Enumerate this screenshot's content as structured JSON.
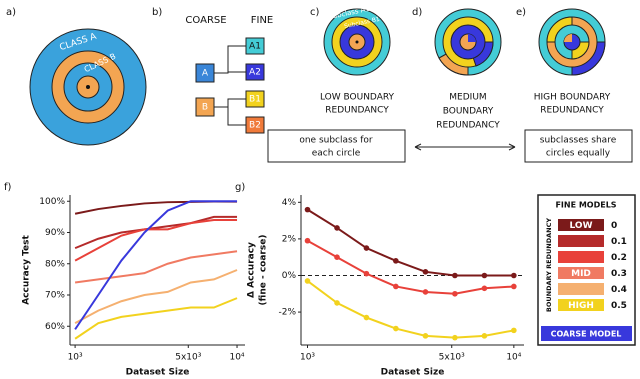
{
  "diagram": {
    "a": {
      "letter": "a)",
      "labels": [
        "CLASS A",
        "CLASS B"
      ]
    },
    "b": {
      "letter": "b)",
      "coarse": "COARSE",
      "fine": "FINE",
      "nodes": [
        "A",
        "B"
      ],
      "subnodes": [
        "A1",
        "A2",
        "B1",
        "B2"
      ]
    },
    "c": {
      "letter": "c)",
      "labels": [
        "Subclass A1",
        "Subclass B1"
      ],
      "caption": [
        "LOW BOUNDARY",
        "REDUNDANCY"
      ]
    },
    "d": {
      "letter": "d)",
      "caption": [
        "MEDIUM",
        "BOUNDARY",
        "REDUNDANCY"
      ]
    },
    "e": {
      "letter": "e)",
      "caption": [
        "HIGH BOUNDARY",
        "REDUNDANCY"
      ]
    },
    "notes": [
      [
        "one subclass for",
        "each circle"
      ],
      [
        "subclasses share",
        "circles equally"
      ]
    ]
  },
  "chart_data": [
    {
      "type": "line",
      "panel": "f)",
      "xlabel": "Dataset Size",
      "ylabel": [
        "Accuracy Test"
      ],
      "xscale": "log",
      "xlim": [
        930,
        11200
      ],
      "ylim": [
        54,
        102
      ],
      "xticks": [
        {
          "value": 1000,
          "label": "10³"
        },
        {
          "value": 5000,
          "label": "5x10³"
        },
        {
          "value": 10000,
          "label": "10⁴"
        }
      ],
      "yticks": [
        {
          "value": 60,
          "label": "60%"
        },
        {
          "value": 70,
          "label": "70%"
        },
        {
          "value": 80,
          "label": "80%"
        },
        {
          "value": 90,
          "label": "90%"
        },
        {
          "value": 100,
          "label": "100%"
        }
      ],
      "x": [
        1000,
        1390,
        1930,
        2680,
        3730,
        5180,
        7200,
        10000
      ],
      "legend_title": "FINE MODELS",
      "legend_axis_label": "BOUNDARY REDUNDANCY",
      "level_labels": [
        "LOW",
        null,
        null,
        "MID",
        null,
        "HIGH",
        null
      ],
      "series": [
        {
          "name": "0",
          "color": "#7b1a1a",
          "values": [
            96,
            97.5,
            98.5,
            99.3,
            99.7,
            99.8,
            99.9,
            99.9
          ]
        },
        {
          "name": "0.1",
          "color": "#b52a2a",
          "values": [
            85,
            88,
            90,
            91,
            92,
            93,
            95,
            95
          ]
        },
        {
          "name": "0.2",
          "color": "#e8413a",
          "values": [
            81,
            85,
            89,
            91,
            91,
            93,
            94,
            94
          ]
        },
        {
          "name": "0.3",
          "color": "#f07a62",
          "values": [
            74,
            75,
            76,
            77,
            80,
            82,
            83,
            84
          ]
        },
        {
          "name": "0.4",
          "color": "#f5b070",
          "values": [
            61,
            65,
            68,
            70,
            71,
            74,
            75,
            78
          ]
        },
        {
          "name": "0.5",
          "color": "#f2d21e",
          "values": [
            56,
            61,
            63,
            64,
            65,
            66,
            66,
            69
          ]
        },
        {
          "name": "COARSE MODEL",
          "color": "#3838dc",
          "values": [
            59,
            70,
            81,
            90,
            97,
            100,
            100,
            100
          ]
        }
      ]
    },
    {
      "type": "line",
      "panel": "g)",
      "xlabel": "Dataset Size",
      "ylabel": [
        "Δ Accuracy",
        "(fine - coarse)"
      ],
      "xscale": "log",
      "xlim": [
        930,
        11200
      ],
      "ylim": [
        -3.8,
        4.4
      ],
      "zero_line": true,
      "markers": true,
      "xticks": [
        {
          "value": 1000,
          "label": "10³"
        },
        {
          "value": 5000,
          "label": "5x10³"
        },
        {
          "value": 10000,
          "label": "10⁴"
        }
      ],
      "yticks": [
        {
          "value": -2,
          "label": "-2%"
        },
        {
          "value": 0,
          "label": "0%"
        },
        {
          "value": 2,
          "label": "2%"
        },
        {
          "value": 4,
          "label": "4%"
        }
      ],
      "x": [
        1000,
        1390,
        1930,
        2680,
        3730,
        5180,
        7200,
        10000
      ],
      "series": [
        {
          "name": "0",
          "color": "#7b1a1a",
          "values": [
            3.6,
            2.6,
            1.5,
            0.8,
            0.2,
            0,
            0,
            0
          ]
        },
        {
          "name": "0.2",
          "color": "#e8413a",
          "values": [
            1.9,
            1.0,
            0.1,
            -0.6,
            -0.9,
            -1.0,
            -0.7,
            -0.6
          ]
        },
        {
          "name": "0.5",
          "color": "#f2d21e",
          "values": [
            -0.3,
            -1.5,
            -2.3,
            -2.9,
            -3.3,
            -3.4,
            -3.3,
            -3.0
          ]
        }
      ]
    }
  ]
}
